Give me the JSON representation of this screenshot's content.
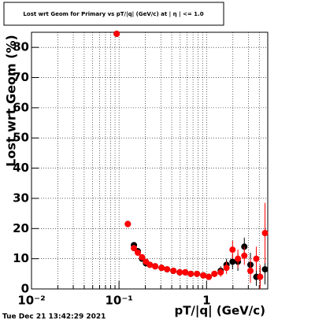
{
  "chart_data": {
    "type": "scatter",
    "title": "Lost wrt Geom for Primary vs pT/|q| (GeV/c) at | η | <= 1.0",
    "x_label": "pT/|q| (GeV/c)",
    "y_label": "Lost wrt Geom (%)",
    "footer": "Tue Dec 21 13:42:29 2021",
    "x_log": true,
    "grid": true,
    "xlim": [
      0.01,
      5
    ],
    "ylim": [
      0,
      85
    ],
    "xticks": [
      {
        "value": 0.01,
        "label": "10⁻²"
      },
      {
        "value": 0.1,
        "label": "10⁻¹"
      },
      1
    ],
    "xminor_ticks": [
      0.02,
      0.03,
      0.04,
      0.05,
      0.06,
      0.07,
      0.08,
      0.09,
      0.2,
      0.3,
      0.4,
      0.5,
      0.6,
      0.7,
      0.8,
      0.9,
      2,
      3,
      4
    ],
    "yticks": [
      0,
      10,
      20,
      30,
      40,
      50,
      60,
      70,
      80
    ],
    "x": [
      0.094,
      0.126,
      0.148,
      0.164,
      0.183,
      0.203,
      0.225,
      0.259,
      0.306,
      0.354,
      0.418,
      0.493,
      0.571,
      0.659,
      0.778,
      0.918,
      1.06,
      1.23,
      1.45,
      1.69,
      1.98,
      2.28,
      2.7,
      3.17,
      3.7,
      4.09,
      4.65
    ],
    "series": [
      {
        "color": "#000000",
        "values": [
          84.5,
          21.5,
          14.5,
          12.5,
          10,
          8.5,
          8,
          7.5,
          7,
          6.5,
          6,
          5.5,
          5.5,
          5,
          5,
          4.5,
          4,
          5,
          6,
          8,
          9,
          9,
          14,
          8,
          4,
          4,
          6.5
        ],
        "errors": [
          0.8,
          0.6,
          0.5,
          0.5,
          0.5,
          0.5,
          0.5,
          0.5,
          0.5,
          0.5,
          0.5,
          0.5,
          0.5,
          0.5,
          0.5,
          0.5,
          0.8,
          1,
          1.5,
          2,
          2.5,
          3,
          3,
          4,
          3,
          3,
          5
        ]
      },
      {
        "color": "#ff0000",
        "values": [
          84.5,
          21.5,
          13.5,
          12,
          10.5,
          9,
          8,
          7.5,
          7,
          6.5,
          6,
          5.5,
          5.5,
          5,
          5,
          4.5,
          4,
          5,
          5.5,
          7,
          13,
          10,
          11,
          6,
          10,
          4,
          18.5
        ],
        "errors": [
          0.8,
          0.6,
          0.5,
          0.5,
          0.5,
          0.5,
          0.5,
          0.5,
          0.5,
          0.5,
          0.5,
          0.5,
          0.5,
          0.5,
          0.5,
          0.5,
          0.8,
          1,
          1.5,
          2,
          3,
          3,
          3,
          4,
          4,
          4,
          10
        ]
      }
    ]
  }
}
